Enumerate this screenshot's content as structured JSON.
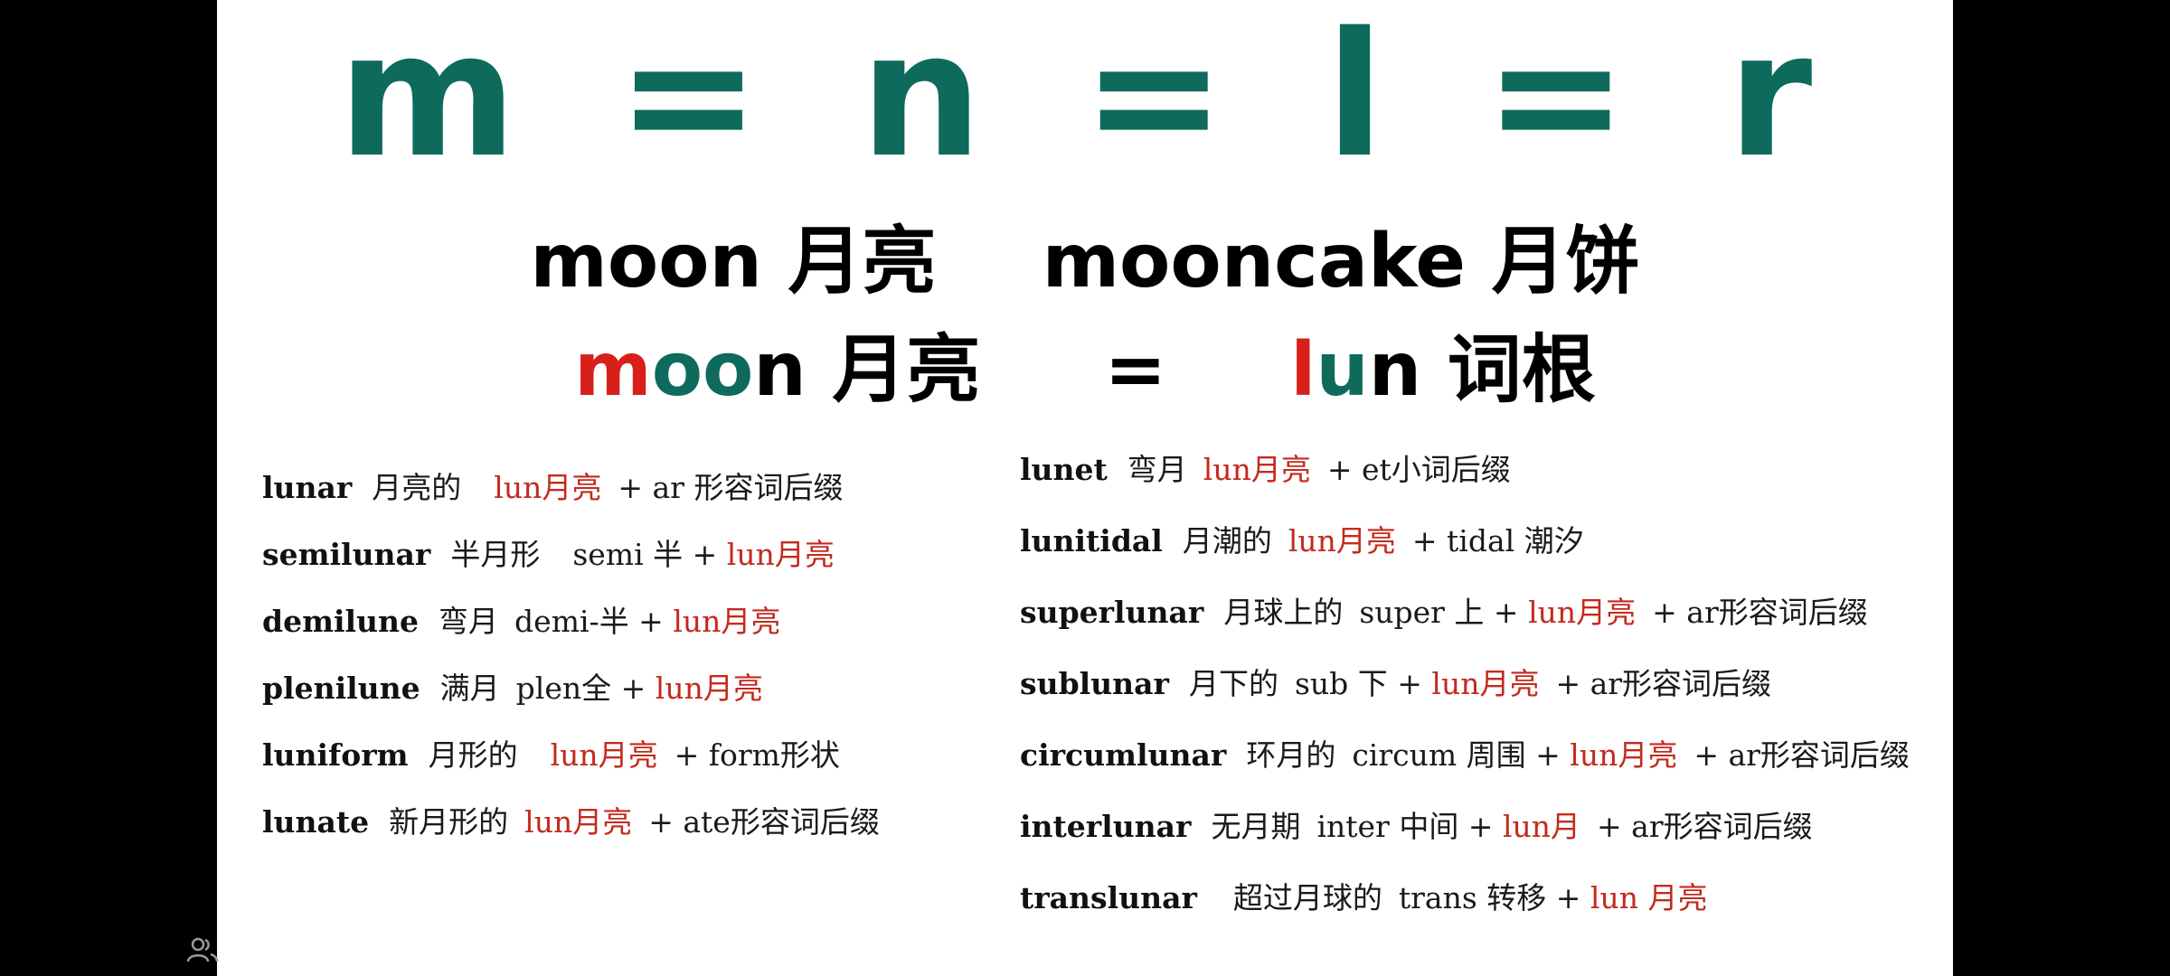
{
  "equation": {
    "text": "m = n = l = r"
  },
  "headline1": {
    "left_word": "moon",
    "left_cn": "月亮",
    "right_word": "mooncake",
    "right_cn": "月饼"
  },
  "headline2": {
    "m": "m",
    "oo": "oo",
    "n": "n",
    "cn": "月亮",
    "equals": "=",
    "l": "l",
    "u": "u",
    "n2": "n",
    "root_cn": "词根"
  },
  "left_list": [
    {
      "word": "lunar",
      "meaning": "月亮的",
      "root": "lun月亮",
      "rest": "+ ar 形容词后缀"
    },
    {
      "word": "semilunar",
      "meaning": "半月形",
      "prefix": "semi 半 +",
      "root": "lun月亮",
      "rest": ""
    },
    {
      "word": "demilune",
      "meaning": "弯月",
      "prefix": "demi-半 +",
      "root": "lun月亮",
      "rest": ""
    },
    {
      "word": "plenilune",
      "meaning": "满月",
      "prefix": "plen全 +",
      "root": "lun月亮",
      "rest": ""
    },
    {
      "word": "luniform",
      "meaning": "月形的",
      "root": "lun月亮",
      "rest": "+ form形状"
    },
    {
      "word": "lunate",
      "meaning": "新月形的",
      "root": "lun月亮",
      "rest": "+ ate形容词后缀"
    }
  ],
  "right_list": [
    {
      "word": "lunet",
      "meaning": "弯月",
      "prefix": "",
      "root": "lun月亮",
      "rest": "+ et小词后缀"
    },
    {
      "word": "lunitidal",
      "meaning": "月潮的",
      "prefix": "",
      "root": "lun月亮",
      "rest": "+ tidal 潮汐"
    },
    {
      "word": "superlunar",
      "meaning": "月球上的",
      "prefix": "super 上 +",
      "root": "lun月亮",
      "rest": "+ ar形容词后缀"
    },
    {
      "word": "sublunar",
      "meaning": "月下的",
      "prefix": "sub 下 +",
      "root": "lun月亮",
      "rest": "+ ar形容词后缀"
    },
    {
      "word": "circumlunar",
      "meaning": "环月的",
      "prefix": "circum 周围 +",
      "root": "lun月亮",
      "rest": "+ ar形容词后缀"
    },
    {
      "word": "interlunar",
      "meaning": "无月期",
      "prefix": "inter 中间 +",
      "root": "lun月",
      "rest": "+ ar形容词后缀"
    },
    {
      "word": "translunar",
      "meaning": "超过月球的",
      "prefix": "trans 转移 +",
      "root": "lun 月亮",
      "rest": ""
    }
  ],
  "colors": {
    "accent_teal": "#0e6a5c",
    "accent_red": "#d8201a",
    "root_red": "#c42a1e",
    "letterbox": "#000000",
    "slide_bg": "#ffffff"
  },
  "icons": {
    "bottom_left": "people-icon"
  }
}
